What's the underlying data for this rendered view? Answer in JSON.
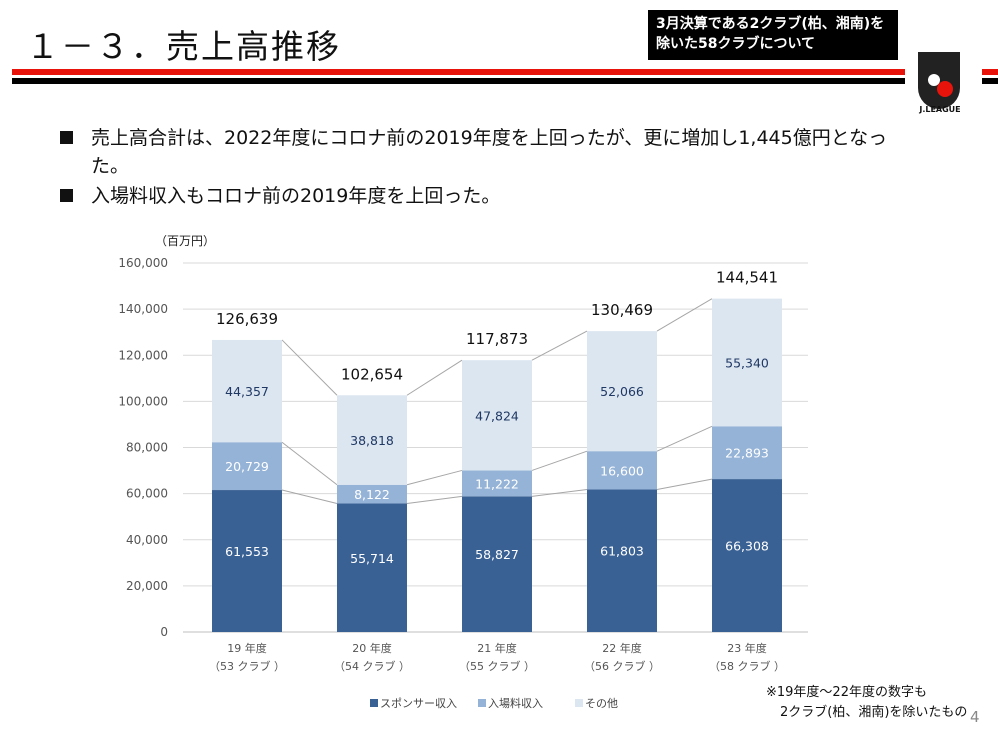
{
  "header": {
    "title": "１－３．売上高推移",
    "note_line1": "3月決算である2クラブ(柏、湘南)を",
    "note_line2": "除いた58クラブについて",
    "logo_text": "J.LEAGUE"
  },
  "bullets": [
    "売上高合計は、2022年度にコロナ前の2019年度を上回ったが、更に増加し1,445億円となった。",
    "入場料収入もコロナ前の2019年度を上回った。"
  ],
  "chart_data": {
    "type": "bar",
    "stacked": true,
    "unit_label": "（百万円）",
    "categories": [
      "19 年度",
      "20 年度",
      "21 年度",
      "22 年度",
      "23 年度"
    ],
    "category_sublabels": [
      "（53 クラブ ）",
      "（54 クラブ ）",
      "（55 クラブ ）",
      "（56 クラブ ）",
      "（58 クラブ ）"
    ],
    "series": [
      {
        "name": "スポンサー収入",
        "color": "#3a6193",
        "values": [
          61553,
          55714,
          58827,
          61803,
          66308
        ],
        "labels": [
          "61,553",
          "55,714",
          "58,827",
          "61,803",
          "66,308"
        ]
      },
      {
        "name": "入場料収入",
        "color": "#95b3d7",
        "values": [
          20729,
          8122,
          11222,
          16600,
          22893
        ],
        "labels": [
          "20,729",
          "8,122",
          "11,222",
          "16,600",
          "22,893"
        ]
      },
      {
        "name": "その他",
        "color": "#dce6f1",
        "values": [
          44357,
          38818,
          47824,
          52066,
          55340
        ],
        "labels": [
          "44,357",
          "38,818",
          "47,824",
          "52,066",
          "55,340"
        ]
      }
    ],
    "totals": [
      "126,639",
      "102,654",
      "117,873",
      "130,469",
      "144,541"
    ],
    "ylim": [
      0,
      160000
    ],
    "yticks": [
      "0",
      "20,000",
      "40,000",
      "60,000",
      "80,000",
      "100,000",
      "120,000",
      "140,000",
      "160,000"
    ],
    "grid": true,
    "legend": "bottom",
    "series_lines": true
  },
  "footnote": {
    "line1": "※19年度～22年度の数字も",
    "line2": "2クラブ(柏、湘南)を除いたもの"
  },
  "page_number": "4"
}
